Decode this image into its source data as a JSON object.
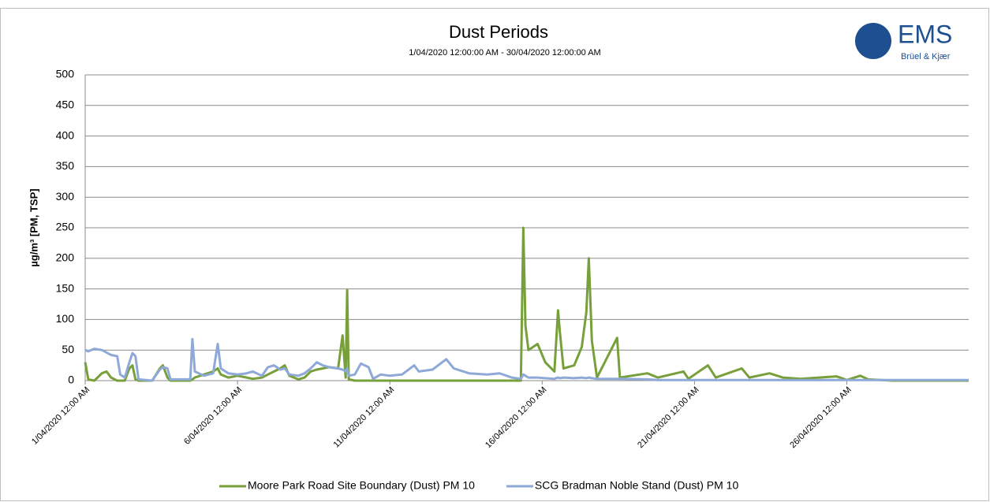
{
  "chart_data": {
    "type": "line",
    "title": "Dust Periods",
    "subtitle": "1/04/2020 12:00:00 AM - 30/04/2020 12:00:00 AM",
    "logo": {
      "name": "EMS",
      "tagline": "Brüel & Kjær"
    },
    "y_label": "µg/m³ [PM, TSP]",
    "x": [
      1.0,
      1.1,
      1.3,
      1.55,
      1.7,
      1.85,
      2.05,
      2.15,
      2.3,
      2.45,
      2.55,
      2.65,
      2.75,
      3.2,
      3.45,
      3.55,
      3.7,
      3.8,
      4.45,
      4.52,
      4.6,
      4.9,
      5.2,
      5.35,
      5.45,
      5.7,
      6.0,
      6.3,
      6.5,
      6.8,
      7.0,
      7.2,
      7.4,
      7.55,
      7.7,
      8.0,
      8.2,
      8.4,
      8.6,
      8.8,
      9.0,
      9.3,
      9.45,
      9.55,
      9.6,
      9.65,
      9.85,
      10.05,
      10.3,
      10.45,
      10.7,
      11.0,
      11.4,
      11.8,
      11.95,
      12.4,
      12.85,
      13.1,
      13.6,
      14.2,
      14.6,
      15.0,
      15.3,
      15.38,
      15.45,
      15.55,
      15.85,
      16.1,
      16.4,
      16.52,
      16.58,
      16.7,
      17.05,
      17.3,
      17.45,
      17.53,
      17.63,
      17.8,
      18.46,
      18.55,
      19.45,
      19.8,
      20.64,
      20.8,
      21.44,
      21.7,
      22.55,
      22.8,
      23.46,
      23.9,
      24.5,
      25.66,
      26.0,
      26.44,
      26.7,
      27.5,
      28.5,
      30.0
    ],
    "series": [
      {
        "name": "Moore Park Road Site Boundary (Dust) PM 10",
        "color": "#77a03a",
        "values": [
          30,
          2,
          0,
          12,
          15,
          5,
          0,
          0,
          0,
          20,
          25,
          2,
          0,
          0,
          20,
          25,
          5,
          0,
          0,
          2,
          5,
          10,
          15,
          20,
          10,
          5,
          8,
          5,
          3,
          5,
          10,
          15,
          20,
          25,
          8,
          2,
          5,
          15,
          18,
          20,
          22,
          20,
          74,
          5,
          148,
          2,
          0,
          0,
          0,
          0,
          0,
          0,
          0,
          0,
          0,
          0,
          0,
          0,
          0,
          0,
          0,
          0,
          0,
          250,
          90,
          50,
          60,
          30,
          15,
          115,
          80,
          20,
          25,
          55,
          112,
          200,
          65,
          5,
          70,
          5,
          12,
          5,
          15,
          3,
          25,
          5,
          20,
          5,
          12,
          5,
          3,
          7,
          1,
          8,
          2,
          0,
          0,
          0
        ]
      },
      {
        "name": "SCG Bradman Noble Stand (Dust) PM 10",
        "color": "#8ea9d8",
        "values": [
          50,
          48,
          52,
          50,
          46,
          42,
          40,
          10,
          5,
          30,
          45,
          40,
          2,
          0,
          18,
          22,
          20,
          2,
          2,
          68,
          15,
          8,
          12,
          60,
          20,
          12,
          10,
          12,
          15,
          8,
          22,
          25,
          18,
          20,
          10,
          8,
          12,
          20,
          30,
          25,
          22,
          20,
          18,
          15,
          20,
          8,
          10,
          28,
          22,
          3,
          10,
          8,
          10,
          25,
          15,
          18,
          35,
          20,
          12,
          10,
          12,
          5,
          3,
          10,
          8,
          5,
          5,
          4,
          3,
          5,
          4,
          5,
          4,
          5,
          4,
          5,
          4,
          3,
          3,
          3,
          2,
          1,
          1,
          1,
          1,
          1,
          1,
          1,
          1,
          1,
          1,
          1,
          1,
          1,
          1,
          1,
          1,
          1
        ]
      }
    ],
    "xlim": [
      1,
      30
    ],
    "xticks": [
      {
        "value": 1,
        "label": "1/04/2020 12:00 AM"
      },
      {
        "value": 6,
        "label": "6/04/2020 12:00 AM"
      },
      {
        "value": 11,
        "label": "11/04/2020 12:00 AM"
      },
      {
        "value": 16,
        "label": "16/04/2020 12:00 AM"
      },
      {
        "value": 21,
        "label": "21/04/2020 12:00 AM"
      },
      {
        "value": 26,
        "label": "26/04/2020 12:00 AM"
      }
    ],
    "ylim": [
      0,
      500
    ],
    "yticks": [
      0,
      50,
      100,
      150,
      200,
      250,
      300,
      350,
      400,
      450,
      500
    ],
    "grid": true,
    "legend": "bottom"
  }
}
